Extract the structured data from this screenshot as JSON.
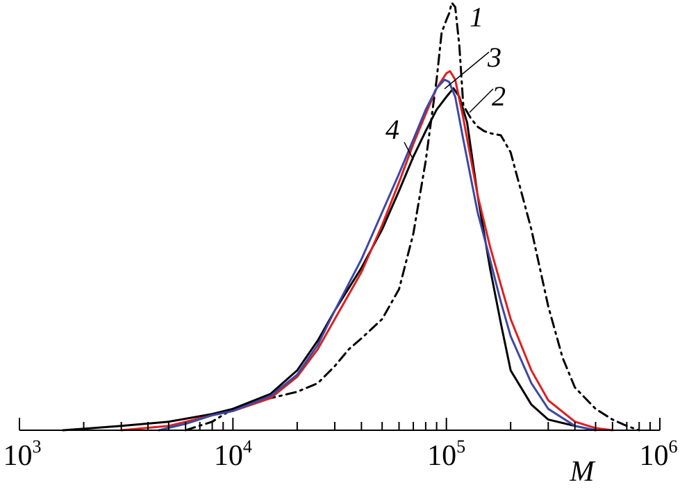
{
  "chart_data": {
    "type": "line",
    "title": "",
    "xlabel": "M",
    "ylabel": "",
    "xscale": "log",
    "xlim": [
      1000,
      1000000
    ],
    "ylim": [
      0,
      1.0
    ],
    "grid": false,
    "legend": "none (curves labeled directly with numbers)",
    "x_ticks": [
      {
        "value": 1000,
        "base": "10",
        "exp": "3"
      },
      {
        "value": 10000,
        "base": "10",
        "exp": "4"
      },
      {
        "value": 100000,
        "base": "10",
        "exp": "5"
      },
      {
        "value": 1000000,
        "base": "10",
        "exp": "6"
      }
    ],
    "series": [
      {
        "label": "1",
        "color": "#000000",
        "style": "dash-dot",
        "points": [
          [
            6000,
            0.0
          ],
          [
            8000,
            0.02
          ],
          [
            10000,
            0.05
          ],
          [
            15000,
            0.075
          ],
          [
            20000,
            0.09
          ],
          [
            25000,
            0.11
          ],
          [
            30000,
            0.15
          ],
          [
            35000,
            0.19
          ],
          [
            40000,
            0.215
          ],
          [
            50000,
            0.26
          ],
          [
            60000,
            0.33
          ],
          [
            70000,
            0.46
          ],
          [
            80000,
            0.63
          ],
          [
            90000,
            0.82
          ],
          [
            95000,
            0.93
          ],
          [
            100000,
            0.96
          ],
          [
            103000,
            0.975
          ],
          [
            106000,
            1.0
          ],
          [
            110000,
            0.99
          ],
          [
            115000,
            0.9
          ],
          [
            120000,
            0.76
          ],
          [
            130000,
            0.73
          ],
          [
            140000,
            0.71
          ],
          [
            150000,
            0.7
          ],
          [
            160000,
            0.695
          ],
          [
            180000,
            0.69
          ],
          [
            200000,
            0.65
          ],
          [
            250000,
            0.47
          ],
          [
            300000,
            0.29
          ],
          [
            350000,
            0.17
          ],
          [
            400000,
            0.1
          ],
          [
            500000,
            0.05
          ],
          [
            600000,
            0.025
          ],
          [
            700000,
            0.01
          ],
          [
            800000,
            0.0
          ]
        ]
      },
      {
        "label": "2",
        "color": "#000000",
        "style": "solid",
        "points": [
          [
            1600,
            0.0
          ],
          [
            3000,
            0.01
          ],
          [
            5000,
            0.02
          ],
          [
            8000,
            0.038
          ],
          [
            10000,
            0.05
          ],
          [
            15000,
            0.085
          ],
          [
            20000,
            0.14
          ],
          [
            25000,
            0.21
          ],
          [
            30000,
            0.28
          ],
          [
            40000,
            0.38
          ],
          [
            50000,
            0.47
          ],
          [
            60000,
            0.56
          ],
          [
            70000,
            0.64
          ],
          [
            80000,
            0.7
          ],
          [
            90000,
            0.75
          ],
          [
            100000,
            0.78
          ],
          [
            108000,
            0.8
          ],
          [
            115000,
            0.78
          ],
          [
            125000,
            0.72
          ],
          [
            140000,
            0.55
          ],
          [
            160000,
            0.38
          ],
          [
            180000,
            0.25
          ],
          [
            200000,
            0.14
          ],
          [
            250000,
            0.06
          ],
          [
            300000,
            0.025
          ],
          [
            400000,
            0.01
          ],
          [
            500000,
            0.0
          ]
        ]
      },
      {
        "label": "3",
        "color": "#e01e1e",
        "style": "solid",
        "points": [
          [
            3000,
            0.0
          ],
          [
            5000,
            0.01
          ],
          [
            8000,
            0.035
          ],
          [
            10000,
            0.045
          ],
          [
            15000,
            0.075
          ],
          [
            20000,
            0.125
          ],
          [
            25000,
            0.19
          ],
          [
            30000,
            0.26
          ],
          [
            40000,
            0.37
          ],
          [
            50000,
            0.48
          ],
          [
            60000,
            0.58
          ],
          [
            70000,
            0.67
          ],
          [
            80000,
            0.74
          ],
          [
            90000,
            0.8
          ],
          [
            100000,
            0.835
          ],
          [
            104000,
            0.84
          ],
          [
            110000,
            0.82
          ],
          [
            120000,
            0.73
          ],
          [
            140000,
            0.55
          ],
          [
            160000,
            0.43
          ],
          [
            180000,
            0.34
          ],
          [
            200000,
            0.26
          ],
          [
            250000,
            0.14
          ],
          [
            300000,
            0.07
          ],
          [
            400000,
            0.02
          ],
          [
            500000,
            0.005
          ],
          [
            600000,
            0.0
          ]
        ]
      },
      {
        "label": "4",
        "color": "#3b48a6",
        "style": "solid",
        "points": [
          [
            4500,
            0.0
          ],
          [
            6000,
            0.015
          ],
          [
            8000,
            0.035
          ],
          [
            10000,
            0.045
          ],
          [
            15000,
            0.08
          ],
          [
            20000,
            0.13
          ],
          [
            25000,
            0.2
          ],
          [
            30000,
            0.28
          ],
          [
            40000,
            0.4
          ],
          [
            50000,
            0.51
          ],
          [
            60000,
            0.6
          ],
          [
            70000,
            0.68
          ],
          [
            80000,
            0.75
          ],
          [
            90000,
            0.8
          ],
          [
            98000,
            0.82
          ],
          [
            103000,
            0.815
          ],
          [
            110000,
            0.78
          ],
          [
            120000,
            0.68
          ],
          [
            140000,
            0.51
          ],
          [
            160000,
            0.4
          ],
          [
            180000,
            0.3
          ],
          [
            200000,
            0.22
          ],
          [
            250000,
            0.11
          ],
          [
            300000,
            0.05
          ],
          [
            400000,
            0.01
          ],
          [
            500000,
            0.0
          ]
        ]
      }
    ],
    "annotations": [
      {
        "text": "1",
        "series": "1"
      },
      {
        "text": "2",
        "series": "2"
      },
      {
        "text": "3",
        "series": "3"
      },
      {
        "text": "4",
        "series": "4"
      }
    ]
  }
}
